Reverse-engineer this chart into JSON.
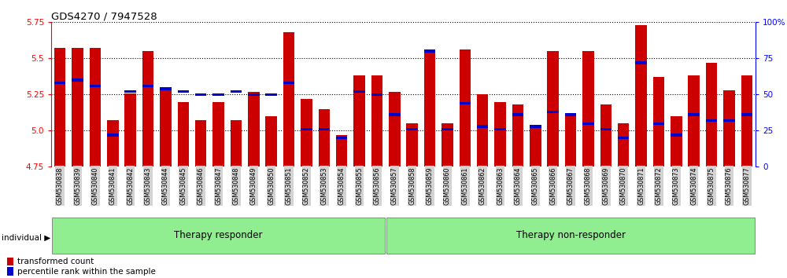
{
  "title": "GDS4270 / 7947528",
  "samples": [
    "GSM530838",
    "GSM530839",
    "GSM530840",
    "GSM530841",
    "GSM530842",
    "GSM530843",
    "GSM530844",
    "GSM530845",
    "GSM530846",
    "GSM530847",
    "GSM530848",
    "GSM530849",
    "GSM530850",
    "GSM530851",
    "GSM530852",
    "GSM530853",
    "GSM530854",
    "GSM530855",
    "GSM530856",
    "GSM530857",
    "GSM530858",
    "GSM530859",
    "GSM530860",
    "GSM530861",
    "GSM530862",
    "GSM530863",
    "GSM530864",
    "GSM530865",
    "GSM530866",
    "GSM530867",
    "GSM530868",
    "GSM530869",
    "GSM530870",
    "GSM530871",
    "GSM530872",
    "GSM530873",
    "GSM530874",
    "GSM530875",
    "GSM530876",
    "GSM530877"
  ],
  "transformed_count": [
    5.57,
    5.57,
    5.57,
    5.07,
    5.26,
    5.55,
    5.3,
    5.2,
    5.07,
    5.2,
    5.07,
    5.27,
    5.1,
    5.68,
    5.22,
    5.15,
    4.97,
    5.38,
    5.38,
    5.27,
    5.05,
    5.55,
    5.05,
    5.56,
    5.25,
    5.2,
    5.18,
    5.03,
    5.55,
    5.1,
    5.55,
    5.18,
    5.05,
    5.73,
    5.37,
    5.1,
    5.38,
    5.47,
    5.28,
    5.38
  ],
  "percentile_rank": [
    58,
    60,
    56,
    22,
    52,
    56,
    54,
    52,
    50,
    50,
    52,
    50,
    50,
    58,
    26,
    26,
    20,
    52,
    50,
    36,
    26,
    80,
    26,
    44,
    28,
    26,
    36,
    28,
    38,
    36,
    30,
    26,
    20,
    72,
    30,
    22,
    36,
    32,
    32,
    36
  ],
  "group_labels": [
    "Therapy responder",
    "Therapy non-responder"
  ],
  "n_group1": 19,
  "n_group2": 21,
  "ylim_left": [
    4.75,
    5.75
  ],
  "ylim_right": [
    0,
    100
  ],
  "yticks_left": [
    4.75,
    5.0,
    5.25,
    5.5,
    5.75
  ],
  "yticks_right": [
    0,
    25,
    50,
    75,
    100
  ],
  "bar_color": "#cc0000",
  "percentile_color": "#0000cc",
  "bg_color": "#ffffff",
  "group_bg_color": "#90ee90",
  "tick_bg_color": "#d3d3d3",
  "legend_bar_label": "transformed count",
  "legend_pct_label": "percentile rank within the sample"
}
